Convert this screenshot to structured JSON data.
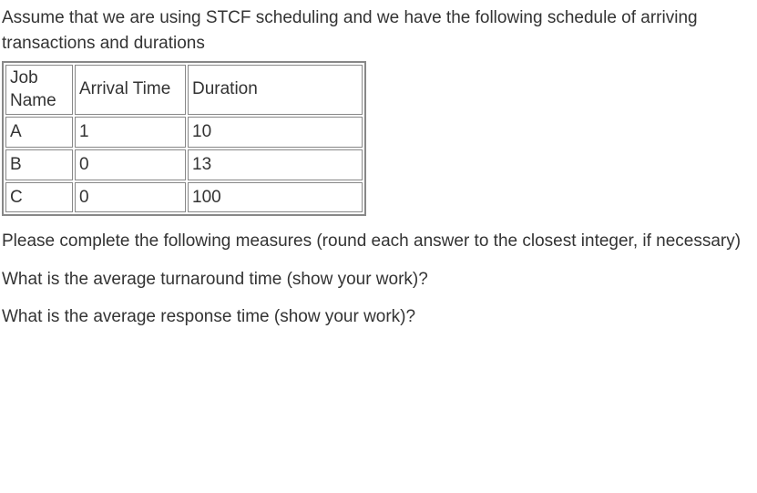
{
  "intro": "Assume that we are using STCF scheduling and we have the following schedule of arriving transactions and durations",
  "table": {
    "headers": {
      "job": "Job Name",
      "arrival": "Arrival Time",
      "duration": "Duration"
    },
    "rows": [
      {
        "job": "A",
        "arrival": "1",
        "duration": "10"
      },
      {
        "job": "B",
        "arrival": "0",
        "duration": "13"
      },
      {
        "job": "C",
        "arrival": "0",
        "duration": "100"
      }
    ]
  },
  "instruction": "Please complete the following measures (round each answer to the closest integer, if necessary)",
  "question1": "What is the average turnaround time (show your work)?",
  "question2": "What is the average response time (show your work)?"
}
